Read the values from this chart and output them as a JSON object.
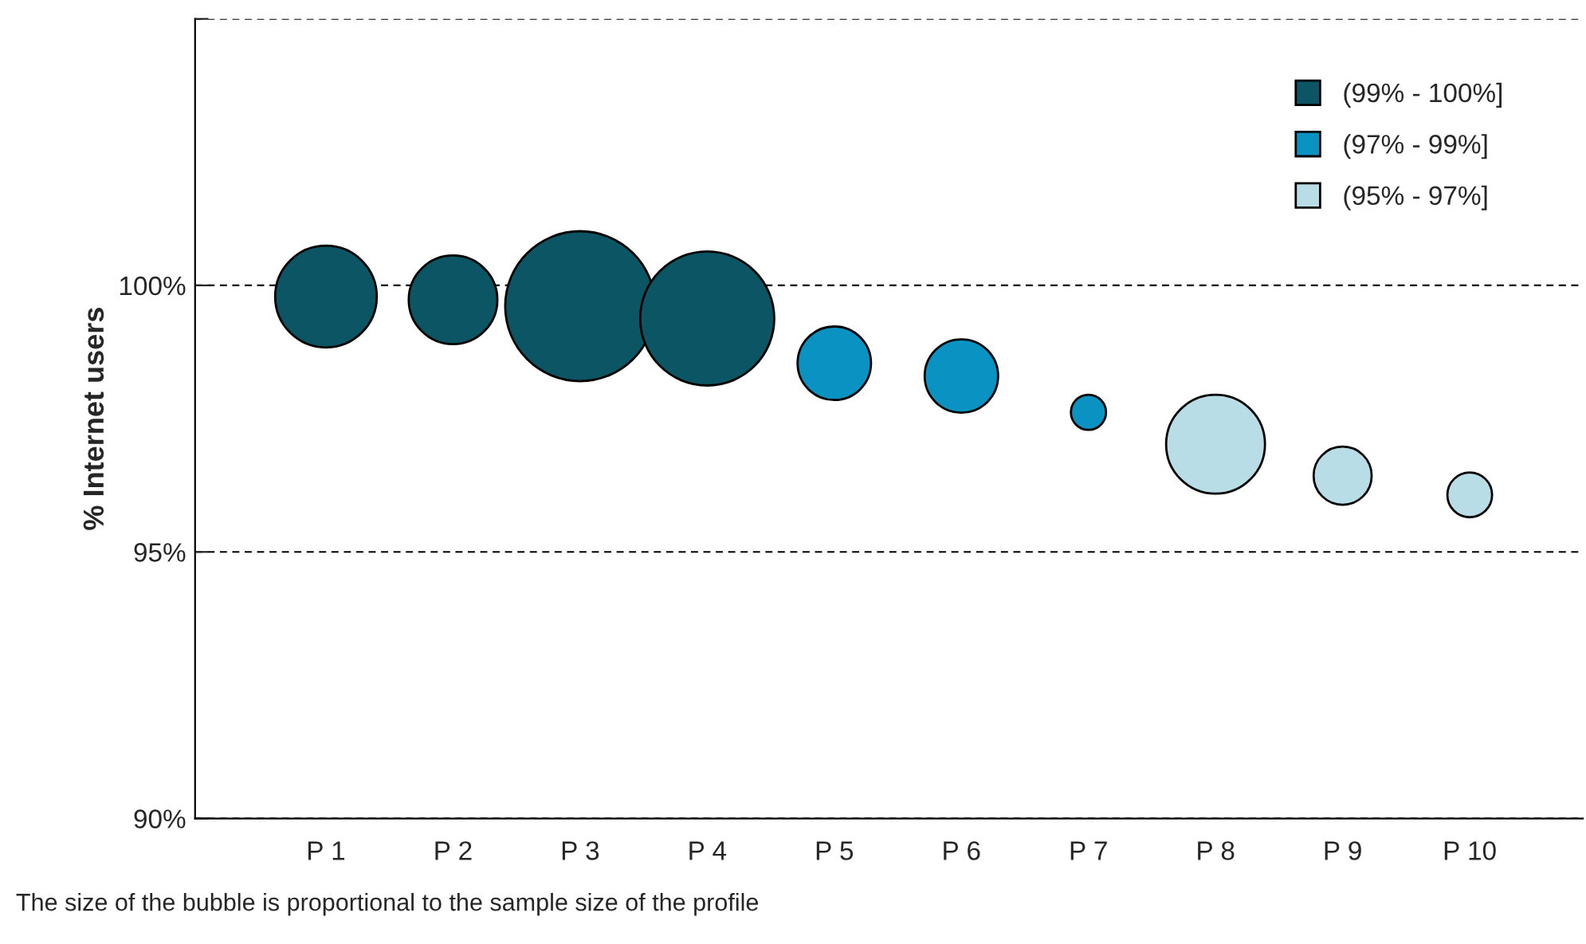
{
  "chart_data": {
    "type": "bubble",
    "ylabel": "% Internet users",
    "categories": [
      "P 1",
      "P 2",
      "P 3",
      "P 4",
      "P 5",
      "P 6",
      "P 7",
      "P 8",
      "P 9",
      "P 10"
    ],
    "series": [
      {
        "name": "(99% - 100%]",
        "color": "#0b5565",
        "values": [
          99.79,
          99.73,
          99.61,
          99.38,
          null,
          null,
          null,
          null,
          null,
          null
        ],
        "sizes": [
          0.46,
          0.35,
          1,
          0.8,
          null,
          null,
          null,
          null,
          null,
          null
        ]
      },
      {
        "name": "(97% - 99%]",
        "color": "#0a92c2",
        "values": [
          null,
          null,
          null,
          null,
          98.54,
          98.3,
          97.62,
          null,
          null,
          null
        ],
        "sizes": [
          null,
          null,
          null,
          null,
          0.24,
          0.24,
          0.055,
          null,
          null,
          null
        ]
      },
      {
        "name": "(95% - 97%]",
        "color": "#b9dde6",
        "values": [
          null,
          null,
          null,
          null,
          null,
          null,
          null,
          97.02,
          96.43,
          96.07
        ],
        "sizes": [
          null,
          null,
          null,
          null,
          null,
          null,
          null,
          0.435,
          0.15,
          0.089
        ]
      }
    ],
    "ylim": [
      90,
      105
    ],
    "yticks": [
      {
        "value": 90,
        "label": "90%"
      },
      {
        "value": 95,
        "label": "95%"
      },
      {
        "value": 100,
        "label": "100%"
      },
      {
        "value": 105,
        "label": null
      }
    ],
    "grid": "y",
    "legend": "top right",
    "annotations": [
      "The size of the bubble is proportional to the sample size of the profile"
    ]
  }
}
